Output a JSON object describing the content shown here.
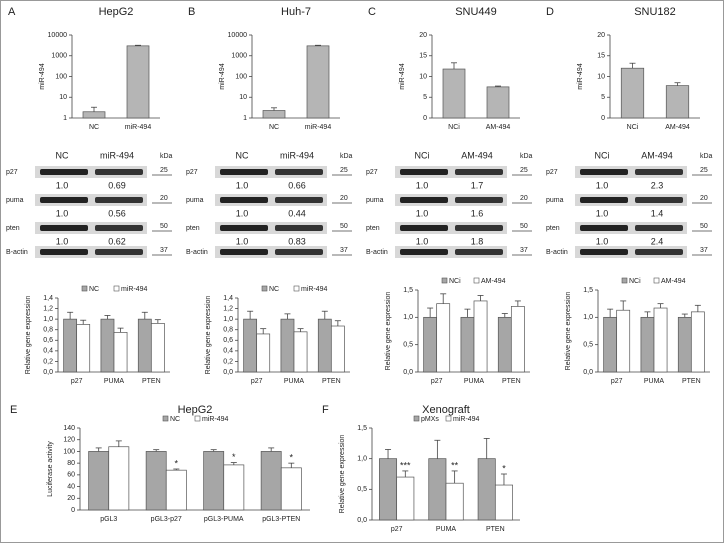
{
  "chart_data": [
    {
      "type": "bar",
      "panel": "A",
      "title": "HepG2",
      "ylabel": "miR-494",
      "log": true,
      "categories": [
        "NC",
        "miR-494"
      ],
      "values": [
        2,
        3000
      ],
      "errors": [
        1.3,
        200
      ],
      "color": "#b5b5b5",
      "ylim": [
        1,
        10000
      ],
      "yticks": [
        1,
        10,
        100,
        1000,
        10000
      ]
    },
    {
      "type": "bar",
      "panel": "B",
      "title": "Huh-7",
      "ylabel": "miR-494",
      "log": true,
      "categories": [
        "NC",
        "miR-494"
      ],
      "values": [
        2.3,
        3000
      ],
      "errors": [
        0.8,
        200
      ],
      "color": "#b5b5b5",
      "ylim": [
        1,
        10000
      ],
      "yticks": [
        1,
        10,
        100,
        1000,
        10000
      ]
    },
    {
      "type": "bar",
      "panel": "C",
      "title": "SNU449",
      "ylabel": "miR-494",
      "categories": [
        "NCi",
        "AM-494"
      ],
      "values": [
        11.8,
        7.5
      ],
      "errors": [
        1.5,
        0.2
      ],
      "color": "#b5b5b5",
      "ylim": [
        0,
        20
      ],
      "yticks": [
        0,
        5,
        10,
        15,
        20
      ]
    },
    {
      "type": "bar",
      "panel": "D",
      "title": "SNU182",
      "ylabel": "miR-494",
      "categories": [
        "NCi",
        "AM-494"
      ],
      "values": [
        12,
        7.8
      ],
      "errors": [
        1.2,
        0.7
      ],
      "color": "#b5b5b5",
      "ylim": [
        0,
        20
      ],
      "yticks": [
        0,
        5,
        10,
        15,
        20
      ]
    },
    {
      "type": "bar",
      "ylabel": "Relative gene expression",
      "categories": [
        "p27",
        "PUMA",
        "PTEN"
      ],
      "series": [
        {
          "name": "NC",
          "color": "#a6a6a6",
          "values": [
            1.0,
            1.0,
            1.0
          ],
          "errors": [
            0.13,
            0.07,
            0.13
          ]
        },
        {
          "name": "miR-494",
          "color": "#ffffff",
          "values": [
            0.9,
            0.75,
            0.92
          ],
          "errors": [
            0.08,
            0.08,
            0.07
          ]
        }
      ],
      "ylim": [
        0,
        1.4
      ],
      "yticks": [
        {
          "value": 0,
          "label": "0,0"
        },
        {
          "value": 0.2,
          "label": "0,2"
        },
        {
          "value": 0.4,
          "label": "0,4"
        },
        {
          "value": 0.6,
          "label": "0,6"
        },
        {
          "value": 0.8,
          "label": "0,8"
        },
        {
          "value": 1.0,
          "label": "1,0"
        },
        {
          "value": 1.2,
          "label": "1,2"
        },
        {
          "value": 1.4,
          "label": "1,4"
        }
      ]
    },
    {
      "type": "bar",
      "ylabel": "Relative gene expression",
      "categories": [
        "p27",
        "PUMA",
        "PTEN"
      ],
      "series": [
        {
          "name": "NC",
          "color": "#a6a6a6",
          "values": [
            1.0,
            1.0,
            1.0
          ],
          "errors": [
            0.15,
            0.1,
            0.15
          ]
        },
        {
          "name": "miR-494",
          "color": "#ffffff",
          "values": [
            0.72,
            0.76,
            0.87
          ],
          "errors": [
            0.1,
            0.06,
            0.1
          ]
        }
      ],
      "ylim": [
        0,
        1.4
      ],
      "yticks": [
        {
          "value": 0,
          "label": "0,0"
        },
        {
          "value": 0.2,
          "label": "0,2"
        },
        {
          "value": 0.4,
          "label": "0,4"
        },
        {
          "value": 0.6,
          "label": "0,6"
        },
        {
          "value": 0.8,
          "label": "0,8"
        },
        {
          "value": 1.0,
          "label": "1,0"
        },
        {
          "value": 1.2,
          "label": "1,2"
        },
        {
          "value": 1.4,
          "label": "1,4"
        }
      ]
    },
    {
      "type": "bar",
      "ylabel": "Relative gene expression",
      "categories": [
        "p27",
        "PUMA",
        "PTEN"
      ],
      "series": [
        {
          "name": "NCi",
          "color": "#a6a6a6",
          "values": [
            1.0,
            1.0,
            1.0
          ],
          "errors": [
            0.17,
            0.15,
            0.07
          ]
        },
        {
          "name": "AM-494",
          "color": "#ffffff",
          "values": [
            1.25,
            1.3,
            1.2
          ],
          "errors": [
            0.18,
            0.1,
            0.1
          ]
        }
      ],
      "ylim": [
        0,
        1.5
      ],
      "yticks": [
        {
          "value": 0,
          "label": "0,0"
        },
        {
          "value": 0.5,
          "label": "0,5"
        },
        {
          "value": 1.0,
          "label": "1,0"
        },
        {
          "value": 1.5,
          "label": "1,5"
        }
      ]
    },
    {
      "type": "bar",
      "ylabel": "Relative gene expression",
      "categories": [
        "p27",
        "PUMA",
        "PTEN"
      ],
      "series": [
        {
          "name": "NCi",
          "color": "#a6a6a6",
          "values": [
            1.0,
            1.0,
            1.0
          ],
          "errors": [
            0.15,
            0.1,
            0.06
          ]
        },
        {
          "name": "AM-494",
          "color": "#ffffff",
          "values": [
            1.13,
            1.17,
            1.1
          ],
          "errors": [
            0.17,
            0.08,
            0.12
          ]
        }
      ],
      "ylim": [
        0,
        1.5
      ],
      "yticks": [
        {
          "value": 0,
          "label": "0,0"
        },
        {
          "value": 0.5,
          "label": "0,5"
        },
        {
          "value": 1.0,
          "label": "1,0"
        },
        {
          "value": 1.5,
          "label": "1,5"
        }
      ]
    },
    {
      "type": "bar",
      "panel": "E",
      "title": "HepG2",
      "ylabel": "Luciferase activity",
      "categories": [
        "pGL3",
        "pGL3-p27",
        "pGL3-PUMA",
        "pGL3-PTEN"
      ],
      "series": [
        {
          "name": "NC",
          "color": "#a6a6a6",
          "values": [
            100,
            100,
            100,
            100
          ],
          "errors": [
            6,
            3,
            3,
            6
          ]
        },
        {
          "name": "miR-494",
          "color": "#ffffff",
          "values": [
            108,
            68,
            77,
            72
          ],
          "errors": [
            10,
            2,
            4,
            8
          ]
        }
      ],
      "stars": [
        null,
        "*",
        "*",
        "*"
      ],
      "ylim": [
        0,
        140
      ],
      "yticks": [
        0,
        20,
        40,
        60,
        80,
        100,
        120,
        140
      ]
    },
    {
      "type": "bar",
      "panel": "F",
      "title": "Xenograft",
      "ylabel": "Relative gene expression",
      "categories": [
        "p27",
        "PUMA",
        "PTEN"
      ],
      "series": [
        {
          "name": "pMXs",
          "color": "#a6a6a6",
          "values": [
            1.0,
            1.0,
            1.0
          ],
          "errors": [
            0.15,
            0.3,
            0.33
          ]
        },
        {
          "name": "miR-494",
          "color": "#ffffff",
          "values": [
            0.7,
            0.6,
            0.57
          ],
          "errors": [
            0.1,
            0.2,
            0.18
          ]
        }
      ],
      "stars": [
        "***",
        "**",
        "*"
      ],
      "ylim": [
        0,
        1.5
      ],
      "yticks": [
        {
          "value": 0,
          "label": "0,0"
        },
        {
          "value": 0.5,
          "label": "0,5"
        },
        {
          "value": 1.0,
          "label": "1,0"
        },
        {
          "value": 1.5,
          "label": "1,5"
        }
      ]
    }
  ],
  "blots": [
    {
      "headers": [
        "NC",
        "miR-494"
      ],
      "unit": "kDa",
      "rows": [
        {
          "label": "p27",
          "kda": "25",
          "ratios": [
            "1.0",
            "0.69"
          ]
        },
        {
          "label": "puma",
          "kda": "20",
          "ratios": [
            "1.0",
            "0.56"
          ]
        },
        {
          "label": "pten",
          "kda": "50",
          "ratios": [
            "1.0",
            "0.62"
          ]
        },
        {
          "label": "B-actin",
          "kda": "37"
        }
      ]
    },
    {
      "headers": [
        "NC",
        "miR-494"
      ],
      "unit": "kDa",
      "rows": [
        {
          "label": "p27",
          "kda": "25",
          "ratios": [
            "1.0",
            "0.66"
          ]
        },
        {
          "label": "puma",
          "kda": "20",
          "ratios": [
            "1.0",
            "0.44"
          ]
        },
        {
          "label": "pten",
          "kda": "50",
          "ratios": [
            "1.0",
            "0.83"
          ]
        },
        {
          "label": "B-actin",
          "kda": "37"
        }
      ]
    },
    {
      "headers": [
        "NCi",
        "AM-494"
      ],
      "unit": "kDa",
      "rows": [
        {
          "label": "p27",
          "kda": "25",
          "ratios": [
            "1.0",
            "1.7"
          ]
        },
        {
          "label": "puma",
          "kda": "20",
          "ratios": [
            "1.0",
            "1.6"
          ]
        },
        {
          "label": "pten",
          "kda": "50",
          "ratios": [
            "1.0",
            "1.8"
          ]
        },
        {
          "label": "B-actin",
          "kda": "37"
        }
      ]
    },
    {
      "headers": [
        "NCi",
        "AM-494"
      ],
      "unit": "kDa",
      "rows": [
        {
          "label": "p27",
          "kda": "25",
          "ratios": [
            "1.0",
            "2.3"
          ]
        },
        {
          "label": "puma",
          "kda": "20",
          "ratios": [
            "1.0",
            "1.4"
          ]
        },
        {
          "label": "pten",
          "kda": "50",
          "ratios": [
            "1.0",
            "2.4"
          ]
        },
        {
          "label": "B-actin",
          "kda": "37"
        }
      ]
    }
  ]
}
